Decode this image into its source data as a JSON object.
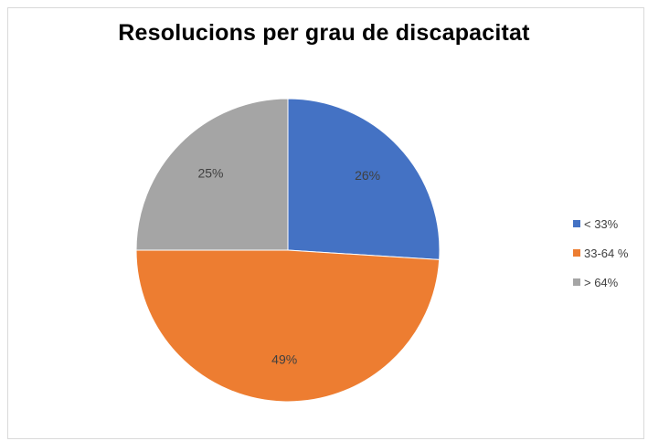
{
  "chart_data": {
    "type": "pie",
    "title": "Resolucions per grau de discapacitat",
    "categories": [
      "< 33%",
      "33-64 %",
      "> 64%"
    ],
    "values": [
      26,
      49,
      25
    ],
    "data_labels": [
      "26%",
      "49%",
      "25%"
    ],
    "colors": [
      "#4472C4",
      "#ED7D31",
      "#A5A5A5"
    ],
    "legend": "right"
  }
}
